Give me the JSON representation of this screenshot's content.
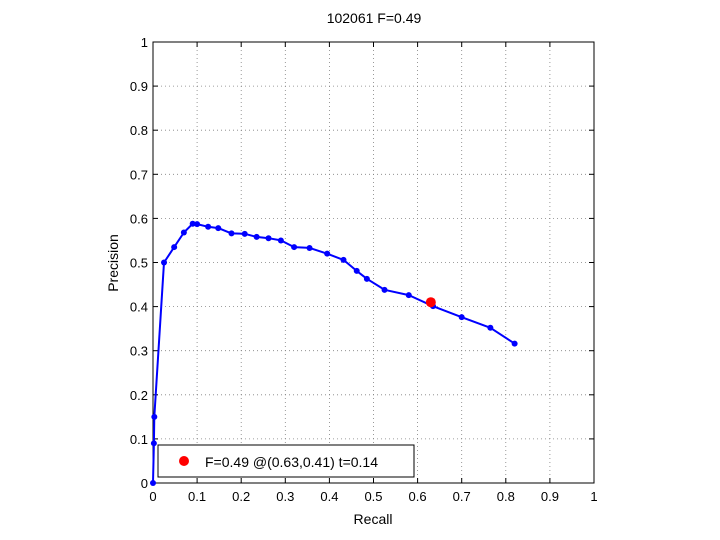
{
  "chart_data": {
    "type": "line",
    "title": "102061 F=0.49",
    "xlabel": "Recall",
    "ylabel": "Precision",
    "xlim": [
      0,
      1
    ],
    "ylim": [
      0,
      1
    ],
    "xticks": [
      "0",
      "0.1",
      "0.2",
      "0.3",
      "0.4",
      "0.5",
      "0.6",
      "0.7",
      "0.8",
      "0.9",
      "1"
    ],
    "yticks": [
      "0",
      "0.1",
      "0.2",
      "0.3",
      "0.4",
      "0.5",
      "0.6",
      "0.7",
      "0.8",
      "0.9",
      "1"
    ],
    "grid": true,
    "series": [
      {
        "color": "#0000ff",
        "points": [
          [
            0.0,
            0.0
          ],
          [
            0.002,
            0.09
          ],
          [
            0.003,
            0.15
          ],
          [
            0.025,
            0.5
          ],
          [
            0.048,
            0.535
          ],
          [
            0.07,
            0.568
          ],
          [
            0.09,
            0.588
          ],
          [
            0.1,
            0.587
          ],
          [
            0.125,
            0.581
          ],
          [
            0.148,
            0.578
          ],
          [
            0.178,
            0.566
          ],
          [
            0.208,
            0.565
          ],
          [
            0.235,
            0.558
          ],
          [
            0.262,
            0.555
          ],
          [
            0.29,
            0.55
          ],
          [
            0.32,
            0.535
          ],
          [
            0.355,
            0.533
          ],
          [
            0.395,
            0.52
          ],
          [
            0.432,
            0.506
          ],
          [
            0.462,
            0.481
          ],
          [
            0.485,
            0.463
          ],
          [
            0.525,
            0.438
          ],
          [
            0.58,
            0.426
          ],
          [
            0.635,
            0.401
          ],
          [
            0.7,
            0.376
          ],
          [
            0.765,
            0.352
          ],
          [
            0.82,
            0.316
          ]
        ]
      }
    ],
    "best_point": {
      "x": 0.63,
      "y": 0.41,
      "color": "#ff0000"
    },
    "legend": {
      "placement": "bottom-left",
      "label": "F=0.49 @(0.63,0.41) t=0.14"
    }
  }
}
